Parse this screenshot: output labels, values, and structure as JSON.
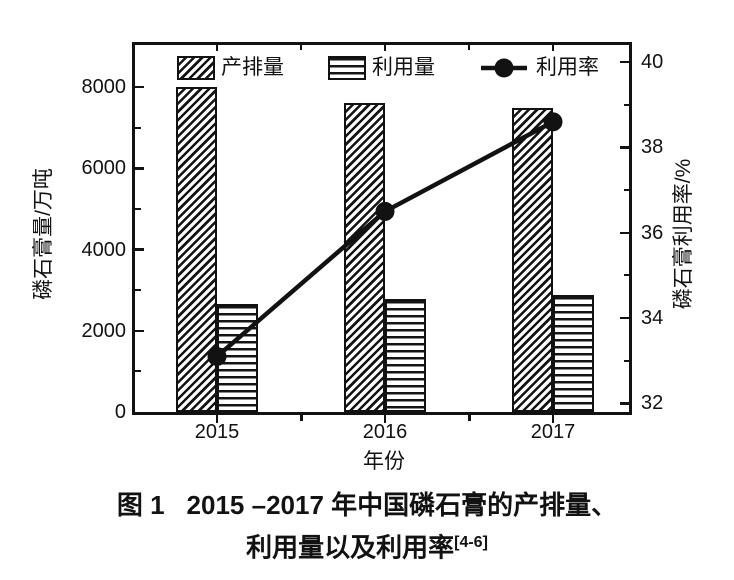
{
  "figure": {
    "caption": {
      "label": "图 1",
      "line1": "2015 –2017 年中国磷石膏的产排量、",
      "line2": "利用量以及利用率",
      "reference": "[4-6]"
    }
  },
  "chart_data": {
    "type": "bar+line",
    "categories": [
      "2015",
      "2016",
      "2017"
    ],
    "series": [
      {
        "name": "产排量",
        "type": "bar",
        "axis": "left",
        "hatch": "diagonal",
        "values": [
          8000,
          7600,
          7500
        ]
      },
      {
        "name": "利用量",
        "type": "bar",
        "axis": "left",
        "hatch": "horizontal",
        "values": [
          2650,
          2780,
          2890
        ]
      },
      {
        "name": "利用率",
        "type": "line",
        "axis": "right",
        "marker": "filled-circle",
        "values": [
          33.1,
          36.5,
          38.6
        ]
      }
    ],
    "xlabel": "年份",
    "ylabel_left": "磷石膏量/万吨",
    "ylabel_right": "磷石膏利用率/%",
    "yticks_left": [
      0,
      2000,
      4000,
      6000,
      8000
    ],
    "yticks_left_minor": [
      1000,
      3000,
      5000,
      7000
    ],
    "yticks_right": [
      32,
      34,
      36,
      38,
      40
    ],
    "yticks_right_minor": [
      33,
      35,
      37,
      39
    ],
    "ylim_left": [
      0,
      9040
    ],
    "ylim_right": [
      31.8,
      40.4
    ],
    "legend_position": "top-inside",
    "grid": false,
    "colors": {
      "ink": "#121212",
      "background": "#ffffff"
    }
  }
}
